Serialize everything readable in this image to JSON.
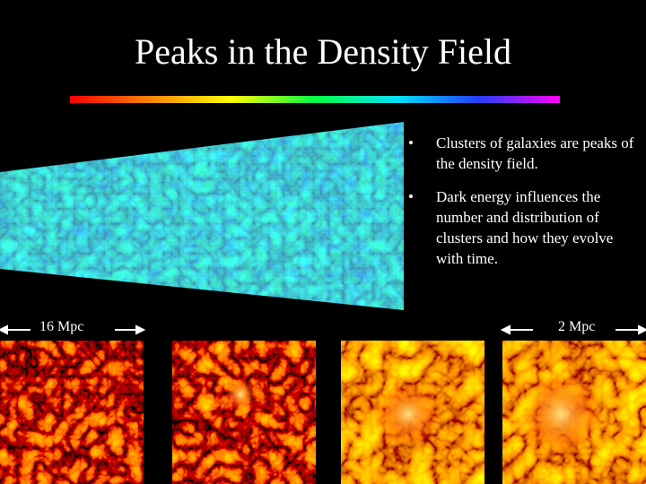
{
  "header": {
    "title": "Peaks in the Density Field"
  },
  "bullets": [
    "Clusters of galaxies are peaks of the density field.",
    "Dark energy influences the number and distribution of clusters and how they evolve with time."
  ],
  "scale_labels": [
    "16 Mpc",
    "2 Mpc"
  ]
}
